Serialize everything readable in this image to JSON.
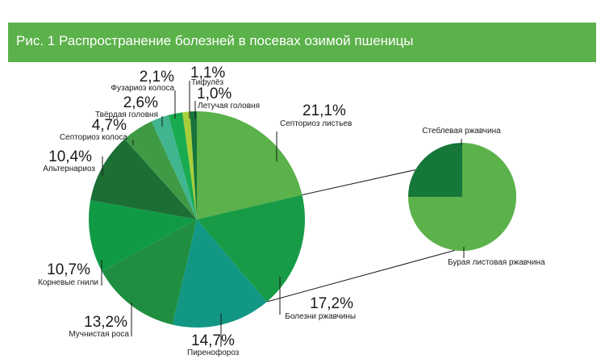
{
  "title": "Рис. 1 Распространение болезней в посевах озимой пшеницы",
  "colors": {
    "title_bar": "#5bb14a",
    "leader": "#1a1a1a"
  },
  "chart_data": [
    {
      "type": "pie",
      "slices": [
        {
          "label": "Септориоз листьев",
          "value": 21.1,
          "value_label": "21,1%",
          "color": "#5bb14a"
        },
        {
          "label": "Болезни ржавчины",
          "value": 17.2,
          "value_label": "17,2%",
          "color": "#179b46"
        },
        {
          "label": "Пиренофороз",
          "value": 14.7,
          "value_label": "14,7%",
          "color": "#129784"
        },
        {
          "label": "Мучнистая роса",
          "value": 13.2,
          "value_label": "13,2%",
          "color": "#1f8e40"
        },
        {
          "label": "Корневые гнили",
          "value": 10.7,
          "value_label": "10,7%",
          "color": "#109a46"
        },
        {
          "label": "Альтернариоз",
          "value": 10.4,
          "value_label": "10,4%",
          "color": "#1c6f34"
        },
        {
          "label": "Септориоз колоса",
          "value": 4.7,
          "value_label": "4,7%",
          "color": "#3f9a46"
        },
        {
          "label": "Твёрдая головня",
          "value": 2.6,
          "value_label": "2,6%",
          "color": "#41b590"
        },
        {
          "label": "Фузариоз колоса",
          "value": 2.1,
          "value_label": "2,1%",
          "color": "#19ab50"
        },
        {
          "label": "Тифулёз",
          "value": 1.1,
          "value_label": "1,1%",
          "color": "#a8cf3a"
        },
        {
          "label": "Летучая головня",
          "value": 1.0,
          "value_label": "1,0%",
          "color": "#16733a"
        }
      ],
      "start": "top",
      "direction": "clockwise"
    },
    {
      "type": "pie",
      "slices": [
        {
          "label": "Бурая листовая ржавчина",
          "value": 75,
          "color": "#5bb14a"
        },
        {
          "label": "Стеблевая ржавчина",
          "value": 25,
          "color": "#16773a"
        }
      ],
      "start": "top",
      "direction": "clockwise"
    }
  ]
}
